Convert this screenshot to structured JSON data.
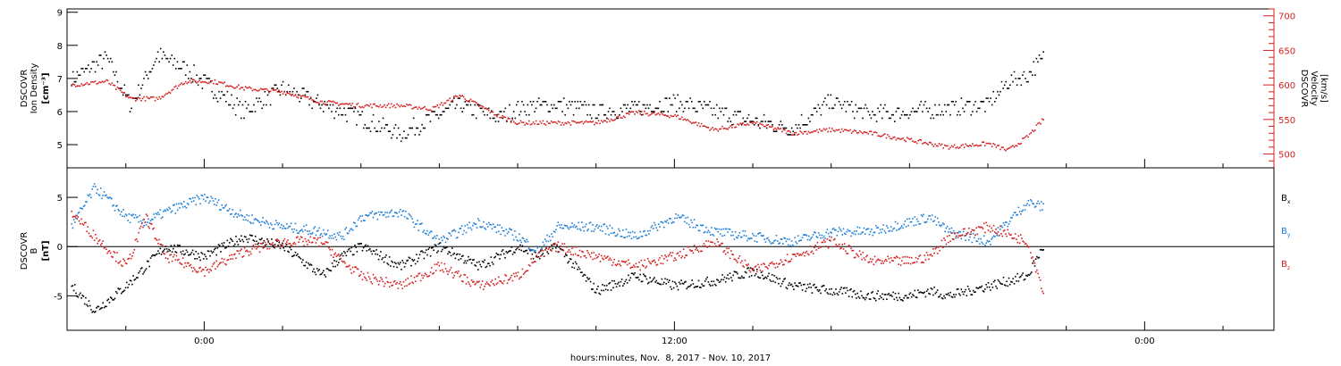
{
  "chart_data": [
    {
      "type": "scatter",
      "panel": "top",
      "ylabel_left": [
        "DSCOVR",
        "Ion Density",
        "[cm⁻³]"
      ],
      "ylabel_right": [
        "DSCOVR",
        "Velocity",
        "[km/s]"
      ],
      "ylim_left": [
        4.3,
        9.1
      ],
      "ylim_right": [
        480,
        710
      ],
      "yticks_left": [
        "5",
        "6",
        "7",
        "8",
        "9"
      ],
      "yticks_right": [
        "500",
        "550",
        "600",
        "650",
        "700"
      ],
      "right_axis_color": "#d42020",
      "x_hours": [
        -3.4,
        -2.5,
        -1.9,
        -1.2,
        -0.5,
        0.2,
        1.0,
        2.0,
        3.0,
        4.0,
        5.0,
        5.8,
        6.5,
        7.5,
        8.0,
        9.0,
        10.0,
        11.0,
        12.0,
        13.0,
        14.0,
        15.0,
        16.0,
        17.0,
        18.0,
        19.0,
        20.0,
        20.5,
        21.0,
        21.4
      ],
      "series": [
        {
          "name": "Ion Density",
          "color": "#000000",
          "axis": "left",
          "values": [
            7.0,
            7.6,
            6.2,
            7.7,
            7.3,
            6.7,
            6.0,
            6.7,
            6.2,
            5.8,
            5.3,
            5.8,
            6.2,
            5.8,
            6.1,
            6.2,
            6.0,
            6.1,
            6.3,
            6.0,
            5.7,
            5.5,
            6.3,
            5.9,
            6.0,
            6.1,
            6.2,
            6.9,
            7.1,
            7.6
          ]
        },
        {
          "name": "Velocity",
          "color": "#d42020",
          "axis": "right",
          "values": [
            600,
            605,
            580,
            580,
            605,
            605,
            595,
            590,
            575,
            570,
            570,
            565,
            585,
            555,
            545,
            545,
            545,
            560,
            555,
            535,
            545,
            530,
            535,
            530,
            520,
            510,
            515,
            505,
            525,
            550
          ]
        }
      ]
    },
    {
      "type": "scatter",
      "panel": "bottom",
      "ylabel_left": [
        "DSCOVR",
        "B",
        "[nT]"
      ],
      "ylim": [
        -8.5,
        8
      ],
      "yticks": [
        "-5",
        "0",
        "5"
      ],
      "zero_line": true,
      "x_hours": [
        -3.4,
        -2.8,
        -2.0,
        -1.5,
        -1.0,
        0.0,
        1.0,
        2.0,
        3.0,
        3.5,
        4.0,
        5.0,
        6.0,
        7.0,
        8.0,
        8.5,
        9.0,
        10.0,
        11.0,
        12.0,
        13.0,
        14.0,
        15.0,
        16.0,
        17.0,
        18.0,
        18.5,
        19.0,
        20.0,
        21.0,
        21.4
      ],
      "series": [
        {
          "name": "Bx",
          "color": "#000000",
          "values": [
            -4.0,
            -6.5,
            -4.0,
            -2.0,
            0.0,
            -1.0,
            1.0,
            0.0,
            -3.0,
            -1.0,
            0.0,
            -2.0,
            0.0,
            -2.0,
            0.0,
            -1.0,
            0.0,
            -4.5,
            -3.0,
            -4.0,
            -3.5,
            -2.5,
            -4.0,
            -4.5,
            -5.0,
            -5.0,
            -4.5,
            -5.0,
            -4.0,
            -3.0,
            0.0
          ]
        },
        {
          "name": "By",
          "color": "#1f7fd6",
          "values": [
            2.0,
            6.0,
            3.0,
            2.5,
            3.5,
            5.0,
            3.0,
            2.0,
            1.5,
            1.0,
            3.0,
            3.5,
            0.5,
            2.5,
            1.0,
            -0.5,
            2.0,
            2.0,
            1.0,
            3.0,
            1.5,
            1.0,
            0.5,
            1.5,
            1.5,
            2.5,
            3.0,
            1.5,
            0.5,
            4.5,
            4.0
          ]
        },
        {
          "name": "Bz",
          "color": "#d42020",
          "values": [
            3.5,
            1.0,
            -2.0,
            3.0,
            -1.0,
            -2.5,
            -0.5,
            0.5,
            0.5,
            -1.5,
            -3.0,
            -4.0,
            -2.0,
            -4.0,
            -3.0,
            -1.0,
            0.0,
            -1.0,
            -2.0,
            -1.0,
            0.5,
            -2.5,
            -1.0,
            0.5,
            -1.5,
            -1.5,
            -1.0,
            1.0,
            2.0,
            0.5,
            -4.5
          ]
        }
      ],
      "legend": [
        {
          "main": "B",
          "sub": "x",
          "color": "#000000"
        },
        {
          "main": "B",
          "sub": "y",
          "color": "#1f7fd6"
        },
        {
          "main": "B",
          "sub": "z",
          "color": "#d42020"
        }
      ]
    }
  ],
  "x_axis": {
    "range_hours": [
      -3.5,
      27.3
    ],
    "tick_labels": [
      {
        "hours": 0,
        "label": "0:00"
      },
      {
        "hours": 12,
        "label": "12:00"
      },
      {
        "hours": 24,
        "label": "0:00"
      }
    ],
    "minor_tick_step_hours": 2,
    "xlabel": "hours:minutes, Nov.  8, 2017 - Nov. 10, 2017"
  }
}
